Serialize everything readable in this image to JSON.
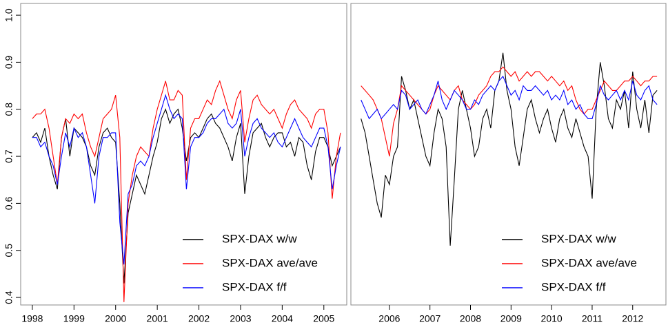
{
  "chart_data": [
    {
      "type": "line",
      "x": [
        1998.0,
        1998.1,
        1998.2,
        1998.3,
        1998.4,
        1998.5,
        1998.6,
        1998.7,
        1998.8,
        1998.9,
        1999.0,
        1999.1,
        1999.2,
        1999.3,
        1999.4,
        1999.5,
        1999.6,
        1999.7,
        1999.8,
        1999.9,
        2000.0,
        2000.1,
        2000.2,
        2000.3,
        2000.4,
        2000.5,
        2000.6,
        2000.7,
        2000.8,
        2000.9,
        2001.0,
        2001.1,
        2001.2,
        2001.3,
        2001.4,
        2001.5,
        2001.6,
        2001.7,
        2001.8,
        2001.9,
        2002.0,
        2002.1,
        2002.2,
        2002.3,
        2002.4,
        2002.5,
        2002.6,
        2002.7,
        2002.8,
        2002.9,
        2003.0,
        2003.1,
        2003.2,
        2003.3,
        2003.4,
        2003.5,
        2003.6,
        2003.7,
        2003.8,
        2003.9,
        2004.0,
        2004.1,
        2004.2,
        2004.3,
        2004.4,
        2004.5,
        2004.6,
        2004.7,
        2004.8,
        2004.9,
        2005.0,
        2005.1,
        2005.2,
        2005.3,
        2005.4
      ],
      "series": [
        {
          "name": "SPX-DAX w/w",
          "color": "#000000",
          "values": [
            0.74,
            0.75,
            0.73,
            0.76,
            0.7,
            0.66,
            0.63,
            0.74,
            0.78,
            0.7,
            0.76,
            0.75,
            0.74,
            0.72,
            0.68,
            0.66,
            0.72,
            0.75,
            0.76,
            0.74,
            0.73,
            0.6,
            0.43,
            0.58,
            0.62,
            0.66,
            0.64,
            0.62,
            0.66,
            0.7,
            0.73,
            0.78,
            0.8,
            0.77,
            0.79,
            0.8,
            0.76,
            0.69,
            0.74,
            0.75,
            0.74,
            0.76,
            0.78,
            0.79,
            0.77,
            0.76,
            0.74,
            0.72,
            0.69,
            0.74,
            0.77,
            0.62,
            0.7,
            0.75,
            0.76,
            0.77,
            0.74,
            0.72,
            0.74,
            0.75,
            0.75,
            0.72,
            0.73,
            0.7,
            0.74,
            0.73,
            0.68,
            0.65,
            0.71,
            0.74,
            0.74,
            0.72,
            0.68,
            0.7,
            0.72
          ]
        },
        {
          "name": "SPX-DAX ave/ave",
          "color": "#ff0000",
          "values": [
            0.78,
            0.79,
            0.79,
            0.8,
            0.76,
            0.7,
            0.64,
            0.74,
            0.78,
            0.77,
            0.79,
            0.78,
            0.79,
            0.75,
            0.72,
            0.7,
            0.74,
            0.78,
            0.79,
            0.8,
            0.83,
            0.74,
            0.39,
            0.6,
            0.66,
            0.7,
            0.72,
            0.71,
            0.7,
            0.76,
            0.8,
            0.83,
            0.86,
            0.82,
            0.82,
            0.84,
            0.83,
            0.65,
            0.76,
            0.78,
            0.78,
            0.8,
            0.82,
            0.81,
            0.84,
            0.86,
            0.83,
            0.8,
            0.78,
            0.82,
            0.84,
            0.73,
            0.78,
            0.82,
            0.83,
            0.81,
            0.8,
            0.79,
            0.8,
            0.78,
            0.76,
            0.79,
            0.81,
            0.82,
            0.8,
            0.79,
            0.78,
            0.76,
            0.79,
            0.8,
            0.8,
            0.75,
            0.61,
            0.7,
            0.75
          ]
        },
        {
          "name": "SPX-DAX f/f",
          "color": "#0000ff",
          "values": [
            0.74,
            0.74,
            0.72,
            0.73,
            0.7,
            0.68,
            0.64,
            0.7,
            0.75,
            0.72,
            0.76,
            0.74,
            0.75,
            0.72,
            0.66,
            0.6,
            0.7,
            0.74,
            0.74,
            0.75,
            0.75,
            0.56,
            0.47,
            0.62,
            0.64,
            0.68,
            0.69,
            0.68,
            0.7,
            0.74,
            0.77,
            0.8,
            0.83,
            0.8,
            0.78,
            0.79,
            0.78,
            0.63,
            0.72,
            0.74,
            0.74,
            0.75,
            0.77,
            0.78,
            0.78,
            0.79,
            0.8,
            0.77,
            0.76,
            0.77,
            0.8,
            0.7,
            0.74,
            0.77,
            0.78,
            0.76,
            0.75,
            0.74,
            0.75,
            0.73,
            0.72,
            0.74,
            0.76,
            0.78,
            0.76,
            0.74,
            0.73,
            0.72,
            0.74,
            0.76,
            0.76,
            0.72,
            0.63,
            0.68,
            0.72
          ]
        }
      ],
      "xlim": [
        1997.72,
        2005.55
      ],
      "xticks": [
        1998,
        1999,
        2000,
        2001,
        2002,
        2003,
        2004,
        2005
      ],
      "ylim": [
        0.384,
        1.025
      ],
      "yticks": [
        0.4,
        0.5,
        0.6,
        0.7,
        0.8,
        0.9,
        {
          "value": 1,
          "label": "1.0"
        }
      ],
      "legend": "bottom-right"
    },
    {
      "type": "line",
      "x": [
        2005.3,
        2005.4,
        2005.5,
        2005.6,
        2005.7,
        2005.8,
        2005.9,
        2006.0,
        2006.1,
        2006.2,
        2006.3,
        2006.4,
        2006.5,
        2006.6,
        2006.7,
        2006.8,
        2006.9,
        2007.0,
        2007.1,
        2007.2,
        2007.3,
        2007.4,
        2007.5,
        2007.6,
        2007.7,
        2007.8,
        2007.9,
        2008.0,
        2008.1,
        2008.2,
        2008.3,
        2008.4,
        2008.5,
        2008.6,
        2008.7,
        2008.8,
        2008.9,
        2009.0,
        2009.1,
        2009.2,
        2009.3,
        2009.4,
        2009.5,
        2009.6,
        2009.7,
        2009.8,
        2009.9,
        2010.0,
        2010.1,
        2010.2,
        2010.3,
        2010.4,
        2010.5,
        2010.6,
        2010.7,
        2010.8,
        2010.9,
        2011.0,
        2011.1,
        2011.2,
        2011.3,
        2011.4,
        2011.5,
        2011.6,
        2011.7,
        2011.8,
        2011.9,
        2012.0,
        2012.1,
        2012.2,
        2012.3,
        2012.4,
        2012.5,
        2012.6
      ],
      "series": [
        {
          "name": "SPX-DAX w/w",
          "color": "#000000",
          "values": [
            0.78,
            0.75,
            0.7,
            0.65,
            0.6,
            0.57,
            0.66,
            0.64,
            0.7,
            0.72,
            0.87,
            0.84,
            0.8,
            0.82,
            0.78,
            0.74,
            0.7,
            0.68,
            0.75,
            0.8,
            0.78,
            0.72,
            0.51,
            0.65,
            0.8,
            0.84,
            0.8,
            0.76,
            0.7,
            0.72,
            0.78,
            0.8,
            0.76,
            0.84,
            0.86,
            0.92,
            0.84,
            0.8,
            0.72,
            0.68,
            0.74,
            0.8,
            0.82,
            0.78,
            0.75,
            0.78,
            0.8,
            0.76,
            0.73,
            0.78,
            0.8,
            0.76,
            0.74,
            0.78,
            0.75,
            0.72,
            0.7,
            0.61,
            0.8,
            0.9,
            0.85,
            0.78,
            0.76,
            0.82,
            0.8,
            0.84,
            0.76,
            0.88,
            0.8,
            0.76,
            0.82,
            0.75,
            0.83,
            0.84
          ]
        },
        {
          "name": "SPX-DAX ave/ave",
          "color": "#ff0000",
          "values": [
            0.85,
            0.84,
            0.83,
            0.82,
            0.8,
            0.78,
            0.74,
            0.7,
            0.77,
            0.8,
            0.85,
            0.84,
            0.83,
            0.82,
            0.81,
            0.8,
            0.79,
            0.8,
            0.83,
            0.85,
            0.84,
            0.83,
            0.82,
            0.84,
            0.85,
            0.82,
            0.81,
            0.8,
            0.81,
            0.83,
            0.84,
            0.85,
            0.87,
            0.88,
            0.88,
            0.89,
            0.88,
            0.87,
            0.88,
            0.86,
            0.87,
            0.88,
            0.87,
            0.88,
            0.88,
            0.87,
            0.86,
            0.87,
            0.86,
            0.85,
            0.86,
            0.84,
            0.85,
            0.82,
            0.8,
            0.79,
            0.8,
            0.8,
            0.82,
            0.84,
            0.86,
            0.85,
            0.84,
            0.84,
            0.85,
            0.86,
            0.86,
            0.87,
            0.86,
            0.85,
            0.86,
            0.86,
            0.87,
            0.87
          ]
        },
        {
          "name": "SPX-DAX f/f",
          "color": "#0000ff",
          "values": [
            0.82,
            0.8,
            0.78,
            0.79,
            0.8,
            0.78,
            0.79,
            0.8,
            0.81,
            0.8,
            0.84,
            0.83,
            0.8,
            0.81,
            0.82,
            0.8,
            0.79,
            0.81,
            0.83,
            0.86,
            0.82,
            0.8,
            0.82,
            0.84,
            0.83,
            0.82,
            0.8,
            0.8,
            0.82,
            0.81,
            0.83,
            0.84,
            0.85,
            0.84,
            0.86,
            0.87,
            0.85,
            0.83,
            0.84,
            0.82,
            0.85,
            0.84,
            0.84,
            0.85,
            0.84,
            0.83,
            0.84,
            0.82,
            0.83,
            0.82,
            0.84,
            0.81,
            0.82,
            0.8,
            0.81,
            0.79,
            0.78,
            0.78,
            0.81,
            0.85,
            0.83,
            0.82,
            0.83,
            0.84,
            0.82,
            0.84,
            0.82,
            0.86,
            0.83,
            0.82,
            0.84,
            0.85,
            0.82,
            0.81
          ]
        }
      ],
      "xlim": [
        2005.05,
        2012.82
      ],
      "xticks": [
        2006,
        2007,
        2008,
        2009,
        2010,
        2011,
        2012
      ],
      "ylim": [
        0.384,
        1.025
      ],
      "legend": "bottom-right"
    }
  ]
}
